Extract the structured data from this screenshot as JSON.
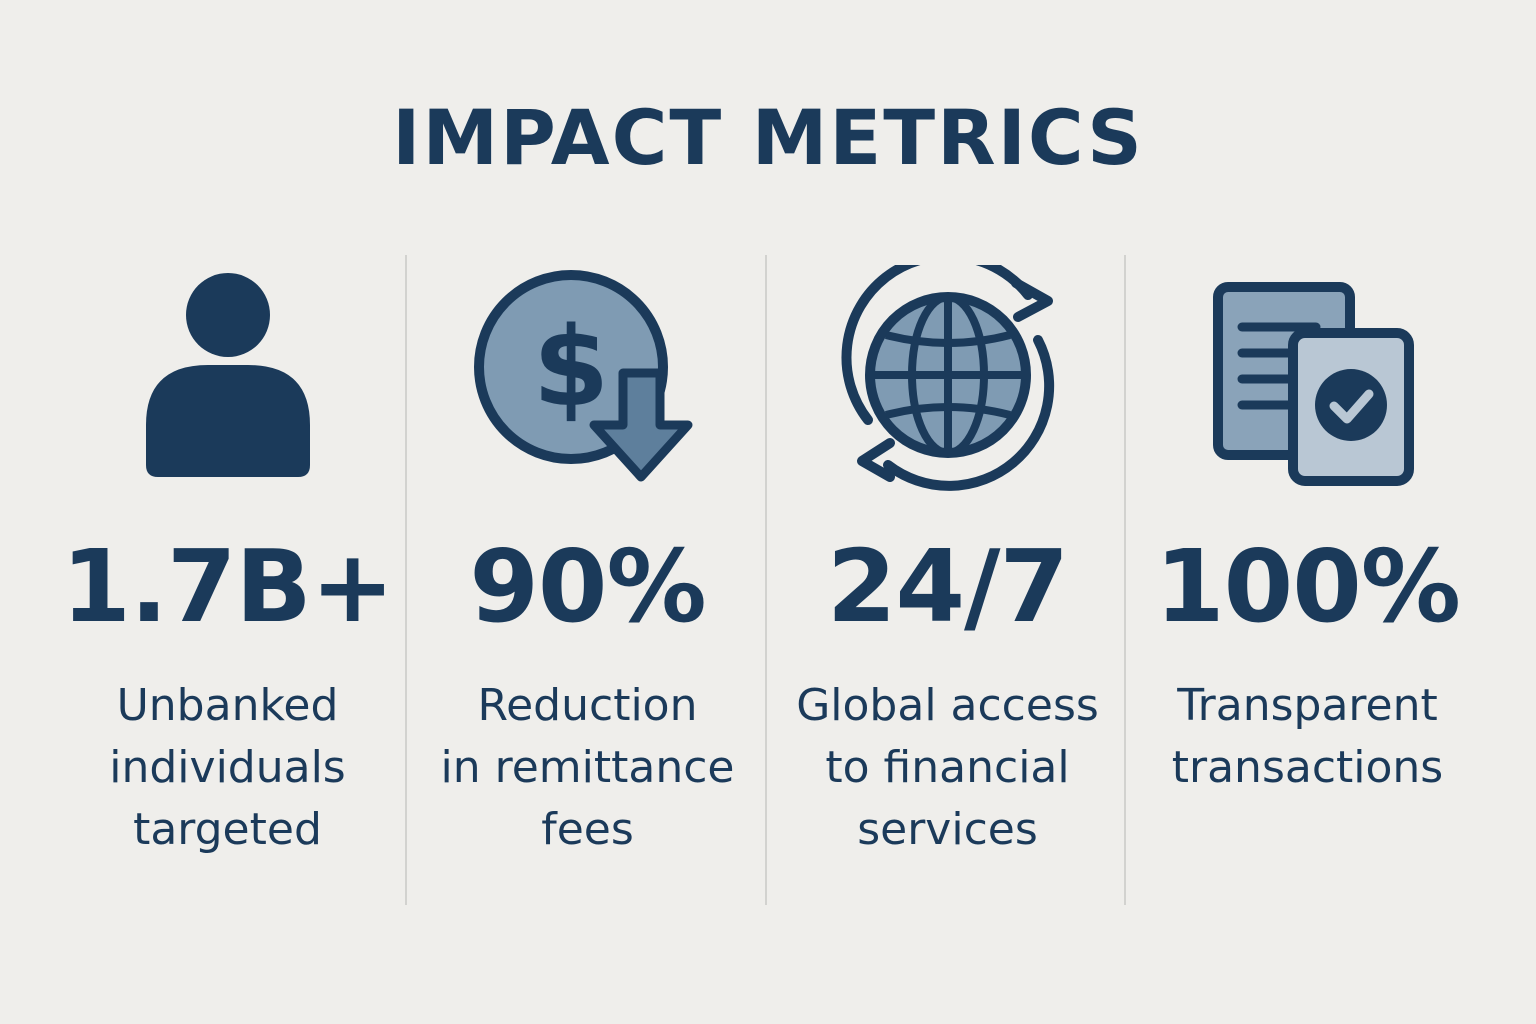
{
  "title": "IMPACT METRICS",
  "colors": {
    "background": "#efeeeb",
    "primary": "#1b3a5a",
    "icon_fill_mid": "#7f9bb3",
    "icon_fill_light": "#a9bccd",
    "divider": "#d2d2cf"
  },
  "metrics": [
    {
      "icon": "person-icon",
      "value": "1.7B+",
      "label_lines": [
        "Unbanked",
        "individuals",
        "targeted"
      ]
    },
    {
      "icon": "dollar-down-arrow-icon",
      "value": "90%",
      "label_lines": [
        "Reduction",
        "in remittance",
        "fees"
      ]
    },
    {
      "icon": "globe-cycle-icon",
      "value": "24/7",
      "label_lines": [
        "Global access",
        "to financial",
        "services"
      ]
    },
    {
      "icon": "documents-check-icon",
      "value": "100%",
      "label_lines": [
        "Transparent",
        "transactions"
      ]
    }
  ]
}
